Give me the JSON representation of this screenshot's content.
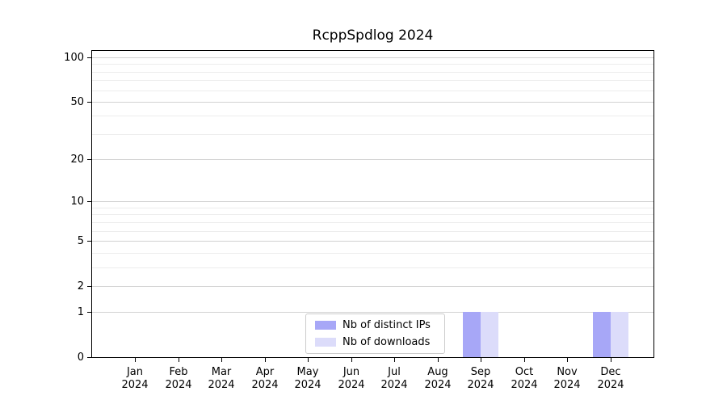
{
  "title": "RcppSpdlog 2024",
  "chart_data": {
    "type": "bar",
    "title": "RcppSpdlog 2024",
    "categories": [
      "Jan 2024",
      "Feb 2024",
      "Mar 2024",
      "Apr 2024",
      "May 2024",
      "Jun 2024",
      "Jul 2024",
      "Aug 2024",
      "Sep 2024",
      "Oct 2024",
      "Nov 2024",
      "Dec 2024"
    ],
    "series": [
      {
        "name": "Nb of distinct IPs",
        "color": "#a7a7f7",
        "values": [
          0,
          0,
          0,
          0,
          0,
          0,
          0,
          0,
          1,
          0,
          0,
          1
        ]
      },
      {
        "name": "Nb of downloads",
        "color": "#dcdcfa",
        "values": [
          0,
          0,
          0,
          0,
          0,
          0,
          0,
          0,
          1,
          0,
          0,
          1
        ]
      }
    ],
    "xlabel": "",
    "ylabel": "",
    "yscale": "log1p",
    "ylim": [
      0,
      110.6
    ],
    "yticks_major": [
      0,
      1,
      2,
      5,
      10,
      20,
      50,
      100
    ],
    "yticks_minor": [
      3,
      4,
      6,
      7,
      8,
      9,
      30,
      40,
      60,
      70,
      80,
      90
    ],
    "grid": true,
    "legend_position": "lower center inside"
  },
  "legend": {
    "items": [
      {
        "label": "Nb of distinct IPs",
        "color": "#a7a7f7"
      },
      {
        "label": "Nb of downloads",
        "color": "#dcdcfa"
      }
    ]
  },
  "colors": {
    "grid_major": "#d2d2d2",
    "grid_minor": "#ededed",
    "spine": "#000000",
    "background": "#ffffff",
    "text": "#000000",
    "legend_border": "#cccccc",
    "bar_distinct_ips": "#a7a7f7",
    "bar_downloads": "#dcdcfa"
  }
}
